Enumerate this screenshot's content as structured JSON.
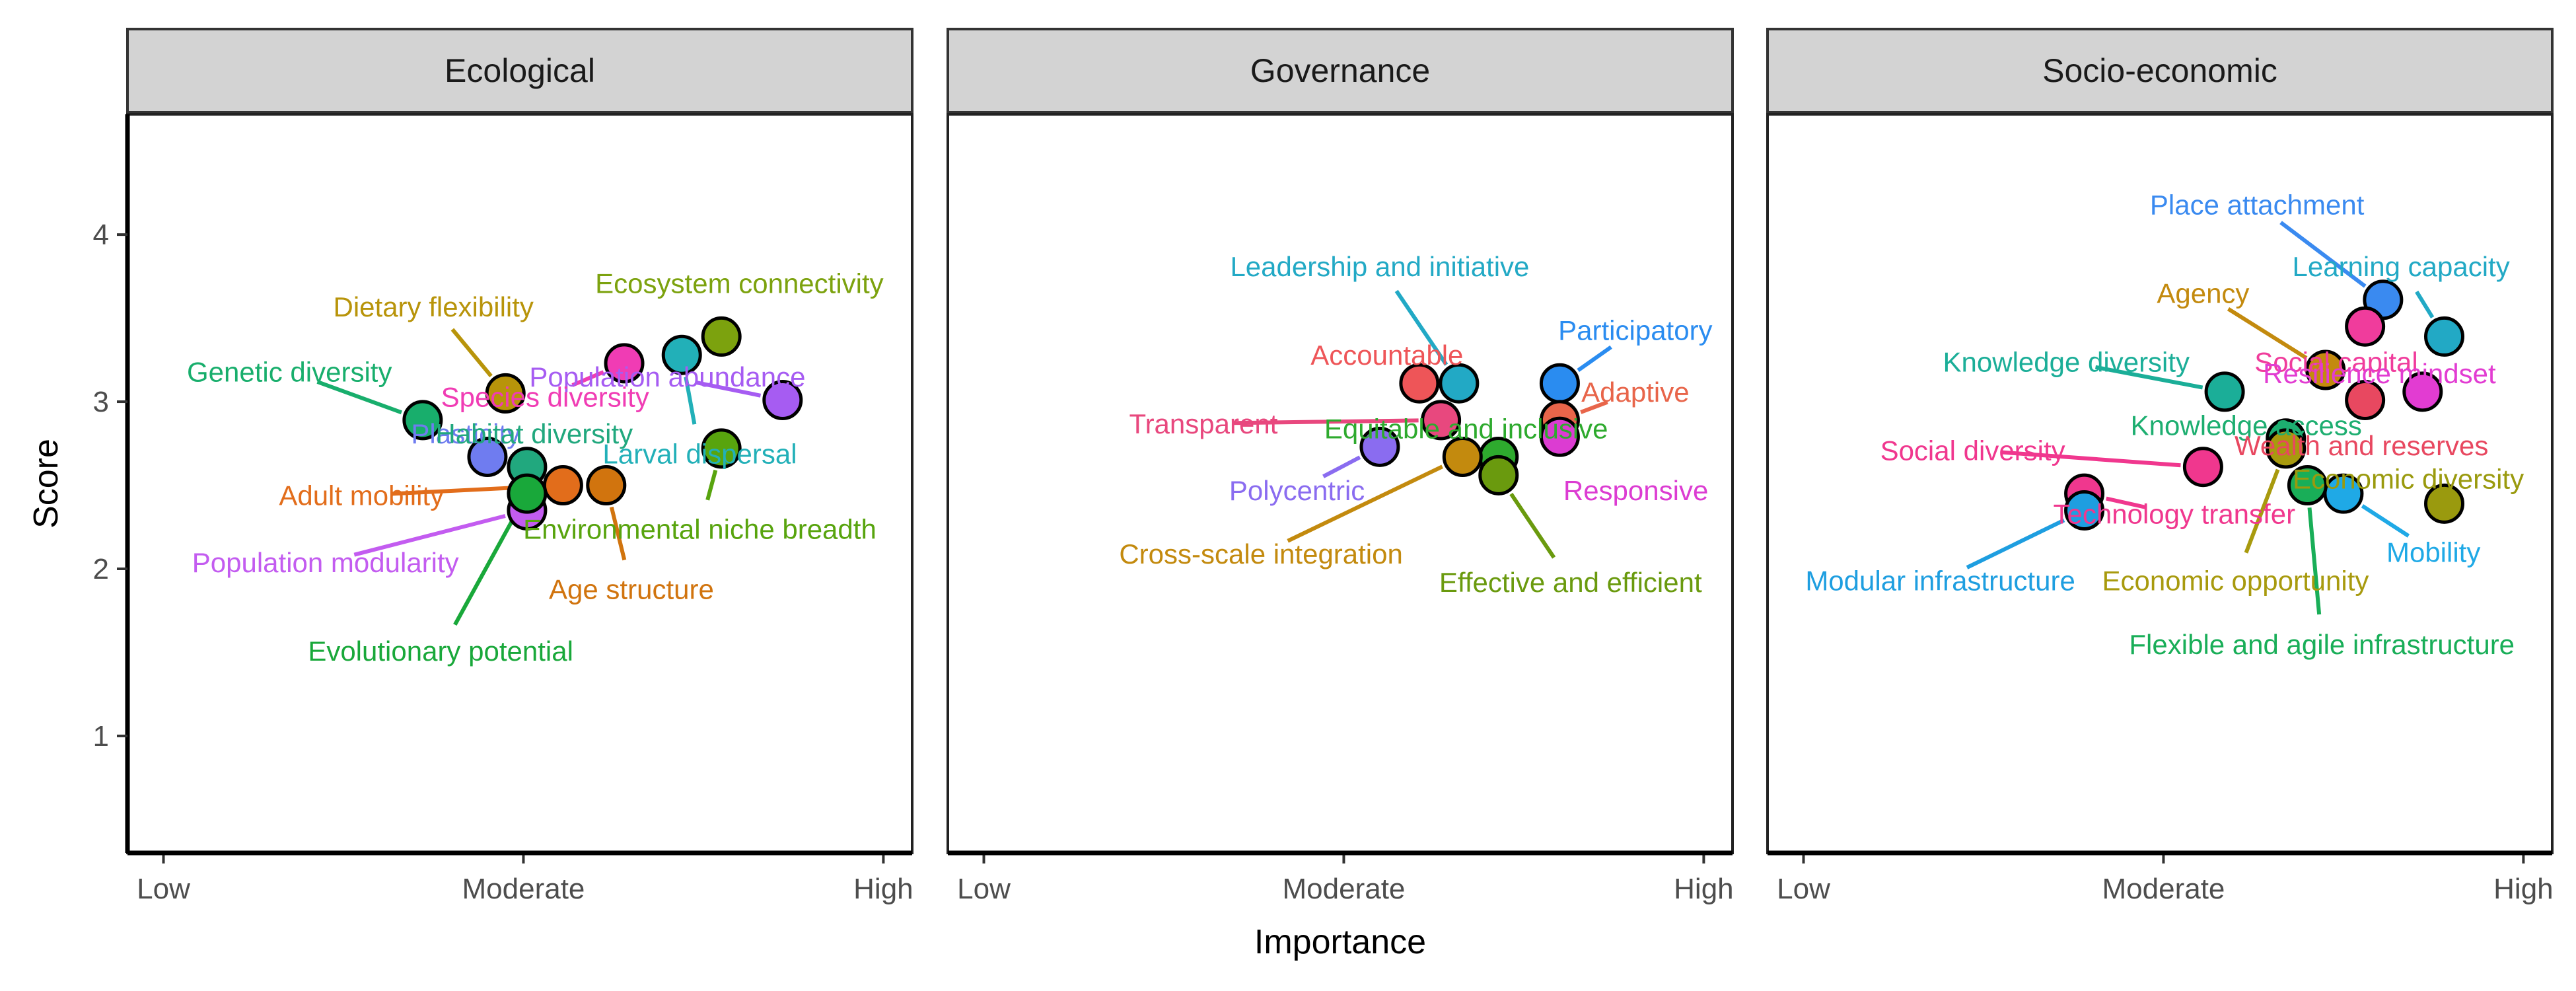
{
  "chart_data": {
    "type": "scatter",
    "xlabel": "Importance",
    "ylabel": "Score",
    "x_tick_labels": [
      "Low",
      "Moderate",
      "High"
    ],
    "y_ticks": [
      "1",
      "2",
      "3",
      "4"
    ],
    "xlim": [
      0.9,
      3.08
    ],
    "ylim": [
      0.3,
      4.72
    ],
    "panels": [
      {
        "title": "Ecological",
        "points": [
          {
            "label": "Dietary flexibility",
            "x": 1.95,
            "y": 3.05,
            "color": "#B8940A",
            "lx": 1.75,
            "ly": 3.57,
            "ax": "middle"
          },
          {
            "label": "Ecosystem connectivity",
            "x": 2.55,
            "y": 3.39,
            "color": "#7CA20E",
            "lx": 2.6,
            "ly": 3.71,
            "ax": "middle"
          },
          {
            "label": "Genetic diversity",
            "x": 1.72,
            "y": 2.89,
            "color": "#18AE6C",
            "lx": 1.35,
            "ly": 3.18,
            "ax": "middle"
          },
          {
            "label": "Population abundance",
            "x": 2.72,
            "y": 3.01,
            "color": "#A65CF2",
            "lx": 2.4,
            "ly": 3.15,
            "ax": "middle"
          },
          {
            "label": "Species diversity",
            "x": 2.28,
            "y": 3.23,
            "color": "#F03CB4",
            "lx": 2.06,
            "ly": 3.03,
            "ax": "middle"
          },
          {
            "label": "Plasticity",
            "x": 1.9,
            "y": 2.67,
            "color": "#6F7CF0",
            "lx": 1.84,
            "ly": 2.81,
            "ax": "middle"
          },
          {
            "label": "Habitat diversity",
            "x": 2.01,
            "y": 2.61,
            "color": "#21A87E",
            "lx": 2.03,
            "ly": 2.81,
            "ax": "middle"
          },
          {
            "label": "Larval dispersal",
            "x": 2.44,
            "y": 3.28,
            "color": "#22B0B8",
            "lx": 2.49,
            "ly": 2.69,
            "ax": "middle"
          },
          {
            "label": "Adult mobility",
            "x": 2.11,
            "y": 2.5,
            "color": "#E26D1B",
            "lx": 1.55,
            "ly": 2.44,
            "ax": "middle"
          },
          {
            "label": "Age structure",
            "x": 2.23,
            "y": 2.5,
            "color": "#D1740E",
            "lx": 2.3,
            "ly": 1.88,
            "ax": "middle"
          },
          {
            "label": "Environmental niche breadth",
            "x": 2.55,
            "y": 2.72,
            "color": "#58A40E",
            "lx": 2.49,
            "ly": 2.24,
            "ax": "middle"
          },
          {
            "label": "Population modularity",
            "x": 2.01,
            "y": 2.35,
            "color": "#C35CF0",
            "lx": 1.45,
            "ly": 2.04,
            "ax": "middle"
          },
          {
            "label": "Evolutionary potential",
            "x": 2.01,
            "y": 2.45,
            "color": "#19A83A",
            "lx": 1.77,
            "ly": 1.51,
            "ax": "middle"
          }
        ]
      },
      {
        "title": "Governance",
        "points": [
          {
            "label": "Leadership and initiative",
            "x": 2.32,
            "y": 3.11,
            "color": "#22A9C5",
            "lx": 2.1,
            "ly": 3.81,
            "ax": "middle"
          },
          {
            "label": "Participatory",
            "x": 2.6,
            "y": 3.11,
            "color": "#2A8CF0",
            "lx": 2.81,
            "ly": 3.43,
            "ax": "middle"
          },
          {
            "label": "Accountable",
            "x": 2.21,
            "y": 3.11,
            "color": "#EE5558",
            "lx": 2.12,
            "ly": 3.28,
            "ax": "middle"
          },
          {
            "label": "Adaptive",
            "x": 2.6,
            "y": 2.89,
            "color": "#E8654A",
            "lx": 2.81,
            "ly": 3.06,
            "ax": "middle"
          },
          {
            "label": "Transparent",
            "x": 2.27,
            "y": 2.89,
            "color": "#E8487E",
            "lx": 1.61,
            "ly": 2.87,
            "ax": "middle"
          },
          {
            "label": "Equitable and inclusive",
            "x": 2.43,
            "y": 2.67,
            "color": "#2EAA2E",
            "lx": 2.34,
            "ly": 2.84,
            "ax": "middle"
          },
          {
            "label": "Responsive",
            "x": 2.6,
            "y": 2.79,
            "color": "#DC3CD2",
            "lx": 2.61,
            "ly": 2.47,
            "ax": "start"
          },
          {
            "label": "Polycentric",
            "x": 2.1,
            "y": 2.73,
            "color": "#8A6CF0",
            "lx": 1.87,
            "ly": 2.47,
            "ax": "middle"
          },
          {
            "label": "Cross-scale integration",
            "x": 2.33,
            "y": 2.67,
            "color": "#C38A0E",
            "lx": 1.77,
            "ly": 2.09,
            "ax": "middle"
          },
          {
            "label": "Effective and efficient",
            "x": 2.43,
            "y": 2.56,
            "color": "#6A9A0E",
            "lx": 2.63,
            "ly": 1.92,
            "ax": "middle"
          }
        ]
      },
      {
        "title": "Socio-economic",
        "points": [
          {
            "label": "Place attachment",
            "x": 2.61,
            "y": 3.61,
            "color": "#3A8AF0",
            "lx": 2.26,
            "ly": 4.18,
            "ax": "middle"
          },
          {
            "label": "Learning capacity",
            "x": 2.78,
            "y": 3.39,
            "color": "#22A9C5",
            "lx": 2.66,
            "ly": 3.81,
            "ax": "middle"
          },
          {
            "label": "Agency",
            "x": 2.45,
            "y": 3.19,
            "color": "#C38A0E",
            "lx": 2.11,
            "ly": 3.65,
            "ax": "middle"
          },
          {
            "label": "Knowledge diversity",
            "x": 2.17,
            "y": 3.06,
            "color": "#1BAE98",
            "lx": 1.73,
            "ly": 3.24,
            "ax": "middle"
          },
          {
            "label": "Social capital",
            "x": 2.56,
            "y": 3.45,
            "color": "#F03C9C",
            "lx": 2.48,
            "ly": 3.24,
            "ax": "middle"
          },
          {
            "label": "Resilience mindset",
            "x": 2.72,
            "y": 3.06,
            "color": "#E23CD2",
            "lx": 2.6,
            "ly": 3.17,
            "ax": "middle"
          },
          {
            "label": "Knowledge access",
            "x": 2.34,
            "y": 2.78,
            "color": "#1DAE70",
            "lx": 2.23,
            "ly": 2.86,
            "ax": "middle"
          },
          {
            "label": "Wealth and reserves",
            "x": 2.56,
            "y": 3.01,
            "color": "#E84860",
            "lx": 2.55,
            "ly": 2.74,
            "ax": "middle"
          },
          {
            "label": "Social diversity",
            "x": 2.11,
            "y": 2.61,
            "color": "#F0378E",
            "lx": 1.47,
            "ly": 2.71,
            "ax": "middle"
          },
          {
            "label": "Economic diversity",
            "x": 2.78,
            "y": 2.39,
            "color": "#9A9A0E",
            "lx": 2.68,
            "ly": 2.54,
            "ax": "middle"
          },
          {
            "label": "Technology transfer",
            "x": 1.78,
            "y": 2.45,
            "color": "#F0378E",
            "lx": 2.03,
            "ly": 2.33,
            "ax": "middle"
          },
          {
            "label": "Mobility",
            "x": 2.5,
            "y": 2.45,
            "color": "#1FA9E6",
            "lx": 2.75,
            "ly": 2.1,
            "ax": "middle"
          },
          {
            "label": "Modular infrastructure",
            "x": 1.78,
            "y": 2.35,
            "color": "#1E9EE0",
            "lx": 1.38,
            "ly": 1.93,
            "ax": "middle"
          },
          {
            "label": "Economic opportunity",
            "x": 2.34,
            "y": 2.72,
            "color": "#A89A0E",
            "lx": 2.2,
            "ly": 1.93,
            "ax": "middle"
          },
          {
            "label": "Flexible and agile infrastructure",
            "x": 2.4,
            "y": 2.5,
            "color": "#19AE58",
            "lx": 2.44,
            "ly": 1.55,
            "ax": "middle"
          }
        ]
      }
    ]
  }
}
